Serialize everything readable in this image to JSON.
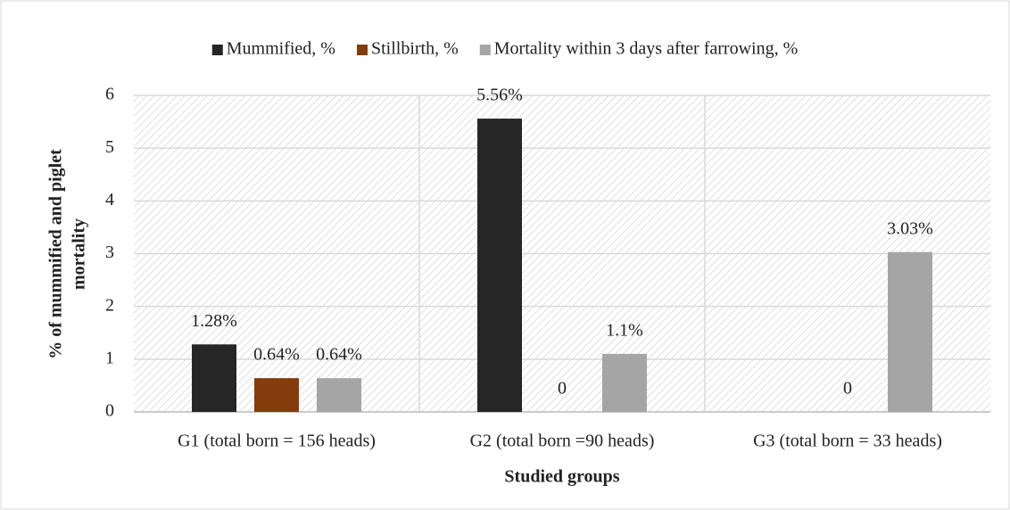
{
  "chart_data": {
    "type": "bar",
    "xlabel": "Studied groups",
    "ylabel": [
      "% of mummified and piglet",
      "mortality"
    ],
    "categories": [
      "G1 (total born = 156 heads)",
      "G2 (total born =90 heads)",
      "G3 (total born = 33 heads)"
    ],
    "series": [
      {
        "name": "Mummified, %",
        "color": "#262626",
        "values": [
          1.28,
          5.56,
          null
        ],
        "value_labels": [
          "1.28%",
          "5.56%",
          null
        ]
      },
      {
        "name": "Stillbirth, %",
        "color": "#843c0c",
        "values": [
          0.64,
          0,
          0
        ],
        "value_labels": [
          "0.64%",
          "0",
          "0"
        ]
      },
      {
        "name": "Mortality within 3 days after farrowing, %",
        "color": "#a5a5a5",
        "values": [
          0.64,
          1.1,
          3.03
        ],
        "value_labels": [
          "0.64%",
          "1.1%",
          "3.03%"
        ]
      }
    ],
    "ylim": [
      0,
      6
    ],
    "yticks": [
      0,
      1,
      2,
      3,
      4,
      5,
      6
    ],
    "grid": true,
    "legend": "top"
  }
}
